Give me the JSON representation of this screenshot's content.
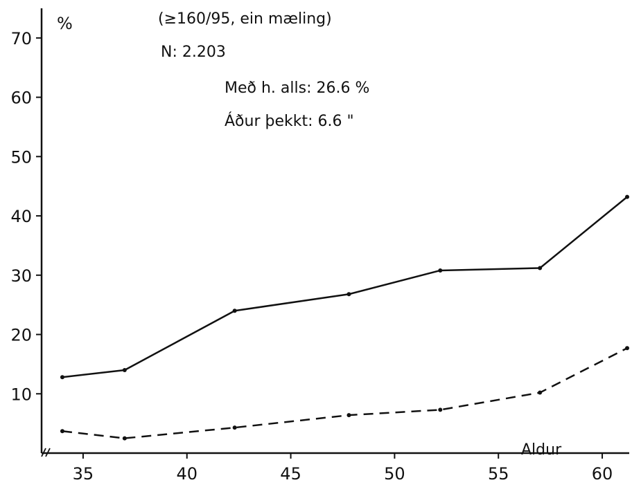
{
  "chart_data": {
    "type": "line",
    "title": "",
    "xlabel": "Aldur",
    "ylabel": "%",
    "annotations": {
      "line1": "(≥160/95, ein mæling)",
      "line2": "N: 2.203",
      "line3": "Með h. alls:  26.6 %",
      "line4": "Áður þekkt:  6.6  \""
    },
    "x_ticks": [
      35,
      40,
      45,
      50,
      55,
      60
    ],
    "y_ticks": [
      10,
      20,
      30,
      40,
      50,
      60,
      70
    ],
    "xlim": [
      33,
      61.3
    ],
    "ylim": [
      0,
      75
    ],
    "grid": false,
    "series": [
      {
        "style": "solid",
        "x": [
          34,
          37,
          42.3,
          47.8,
          52.2,
          57,
          61.2
        ],
        "y": [
          12.8,
          14,
          24,
          26.8,
          30.8,
          31.2,
          43.2
        ]
      },
      {
        "style": "dashed",
        "x": [
          34,
          37,
          42.3,
          47.8,
          52.2,
          57,
          61.2
        ],
        "y": [
          3.7,
          2.5,
          4.3,
          6.4,
          7.3,
          10.2,
          17.7
        ]
      }
    ],
    "colors": {
      "line": "#111111"
    }
  }
}
